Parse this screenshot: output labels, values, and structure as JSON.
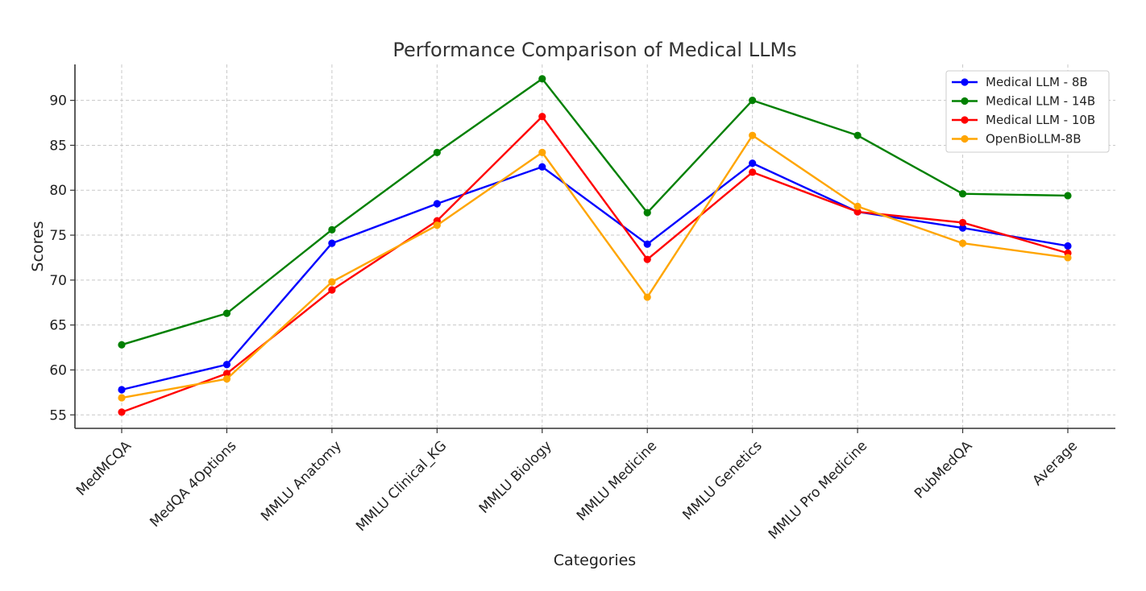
{
  "chart_data": {
    "type": "line",
    "title": "Performance Comparison of Medical LLMs",
    "xlabel": "Categories",
    "ylabel": "Scores",
    "ylim": [
      53.5,
      94
    ],
    "yticks": [
      55,
      60,
      65,
      70,
      75,
      80,
      85,
      90
    ],
    "grid": true,
    "legend_position": "top-right",
    "categories": [
      "MedMCQA",
      "MedQA 4Options",
      "MMLU Anatomy",
      "MMLU Clinical_KG",
      "MMLU Biology",
      "MMLU Medicine",
      "MMLU Genetics",
      "MMLU Pro Medicine",
      "PubMedQA",
      "Average"
    ],
    "series": [
      {
        "name": "Medical LLM - 8B",
        "color": "#0000ff",
        "values": [
          57.8,
          60.6,
          74.1,
          78.5,
          82.6,
          74.0,
          83.0,
          77.6,
          75.8,
          73.8
        ]
      },
      {
        "name": "Medical LLM - 14B",
        "color": "#008000",
        "values": [
          62.8,
          66.3,
          75.6,
          84.2,
          92.4,
          77.5,
          90.0,
          86.1,
          79.6,
          79.4
        ]
      },
      {
        "name": "Medical LLM - 10B",
        "color": "#ff0000",
        "values": [
          55.3,
          59.6,
          68.9,
          76.6,
          88.2,
          72.3,
          82.0,
          77.6,
          76.4,
          73.0
        ]
      },
      {
        "name": "OpenBioLLM-8B",
        "color": "#ffa500",
        "values": [
          56.9,
          59.0,
          69.8,
          76.1,
          84.2,
          68.1,
          86.1,
          78.2,
          74.1,
          72.5
        ]
      }
    ]
  }
}
